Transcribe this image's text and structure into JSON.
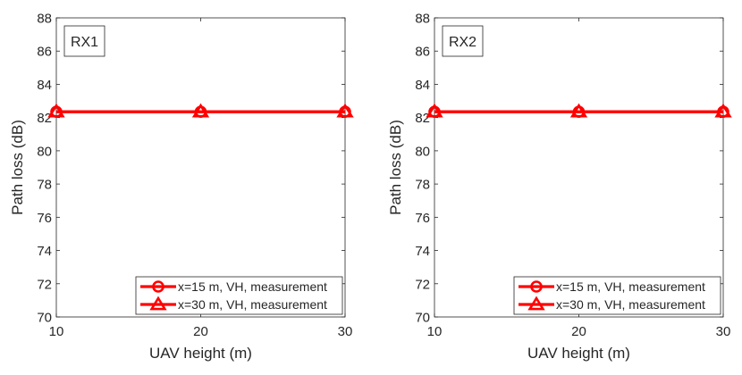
{
  "chart_data": [
    {
      "type": "line",
      "panel_label": "RX1",
      "xlabel": "UAV height (m)",
      "ylabel": "Path loss (dB)",
      "xlim": [
        10,
        30
      ],
      "ylim": [
        70,
        88
      ],
      "xticks": [
        "10",
        "20",
        "30"
      ],
      "yticks": [
        "70",
        "72",
        "74",
        "76",
        "78",
        "80",
        "82",
        "84",
        "86",
        "88"
      ],
      "grid": false,
      "legend_position": "bottom-right",
      "x": [
        10,
        20,
        30
      ],
      "series": [
        {
          "name": "x=15 m, VH, measurement",
          "marker": "circle",
          "color": "#ff0000",
          "values": [
            82.35,
            82.35,
            82.35
          ]
        },
        {
          "name": "x=30 m, VH, measurement",
          "marker": "triangle",
          "color": "#ff0000",
          "values": [
            82.35,
            82.35,
            82.35
          ]
        }
      ]
    },
    {
      "type": "line",
      "panel_label": "RX2",
      "xlabel": "UAV height (m)",
      "ylabel": "Path loss (dB)",
      "xlim": [
        10,
        30
      ],
      "ylim": [
        70,
        88
      ],
      "xticks": [
        "10",
        "20",
        "30"
      ],
      "yticks": [
        "70",
        "72",
        "74",
        "76",
        "78",
        "80",
        "82",
        "84",
        "86",
        "88"
      ],
      "grid": false,
      "legend_position": "bottom-right",
      "x": [
        10,
        20,
        30
      ],
      "series": [
        {
          "name": "x=15 m, VH, measurement",
          "marker": "circle",
          "color": "#ff0000",
          "values": [
            82.35,
            82.35,
            82.35
          ]
        },
        {
          "name": "x=30 m, VH, measurement",
          "marker": "triangle",
          "color": "#ff0000",
          "values": [
            82.35,
            82.35,
            82.35
          ]
        }
      ]
    }
  ]
}
